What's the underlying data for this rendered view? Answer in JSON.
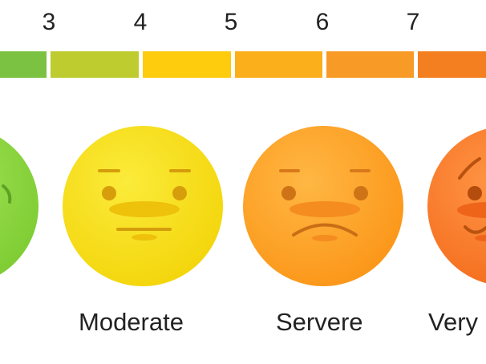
{
  "scale": {
    "numbers": [
      "3",
      "4",
      "5",
      "6",
      "7"
    ],
    "segment_colors": [
      "#7cc242",
      "#bfcc30",
      "#fecb0d",
      "#fbb01b",
      "#f89a26",
      "#f47f21"
    ]
  },
  "faces": [
    {
      "expression": "partially-visible-green-face",
      "color": "#8dd83f"
    },
    {
      "expression": "neutral-face",
      "color": "#f8e010"
    },
    {
      "expression": "frowning-face",
      "color": "#fca224"
    },
    {
      "expression": "worried-face",
      "color": "#f8782a"
    }
  ],
  "labels": {
    "moderate": "Moderate",
    "severe": "Servere",
    "very": "Very"
  }
}
